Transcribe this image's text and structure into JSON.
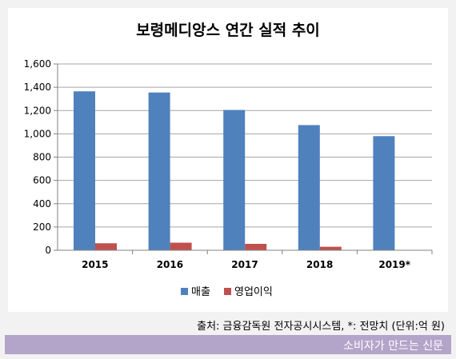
{
  "chart_data": {
    "type": "bar",
    "title": "보령메디앙스 연간 실적 추이",
    "categories": [
      "2015",
      "2016",
      "2017",
      "2018",
      "2019*"
    ],
    "series": [
      {
        "name": "매출",
        "values": [
          1365,
          1355,
          1205,
          1075,
          980
        ],
        "color": "#4f81bd"
      },
      {
        "name": "영업이익",
        "values": [
          60,
          65,
          55,
          30,
          null
        ],
        "color": "#c0504d"
      }
    ],
    "ylim": [
      0,
      1600
    ],
    "yticks": [
      "0",
      "200",
      "400",
      "600",
      "800",
      "1,000",
      "1,200",
      "1,400",
      "1,600"
    ],
    "grid": true,
    "legend": "bottom"
  },
  "source_note": "출처: 금융감독원 전자공시시스템, *: 전망치 (단위:억 원)",
  "footer": "소비자가 만드는 신문"
}
